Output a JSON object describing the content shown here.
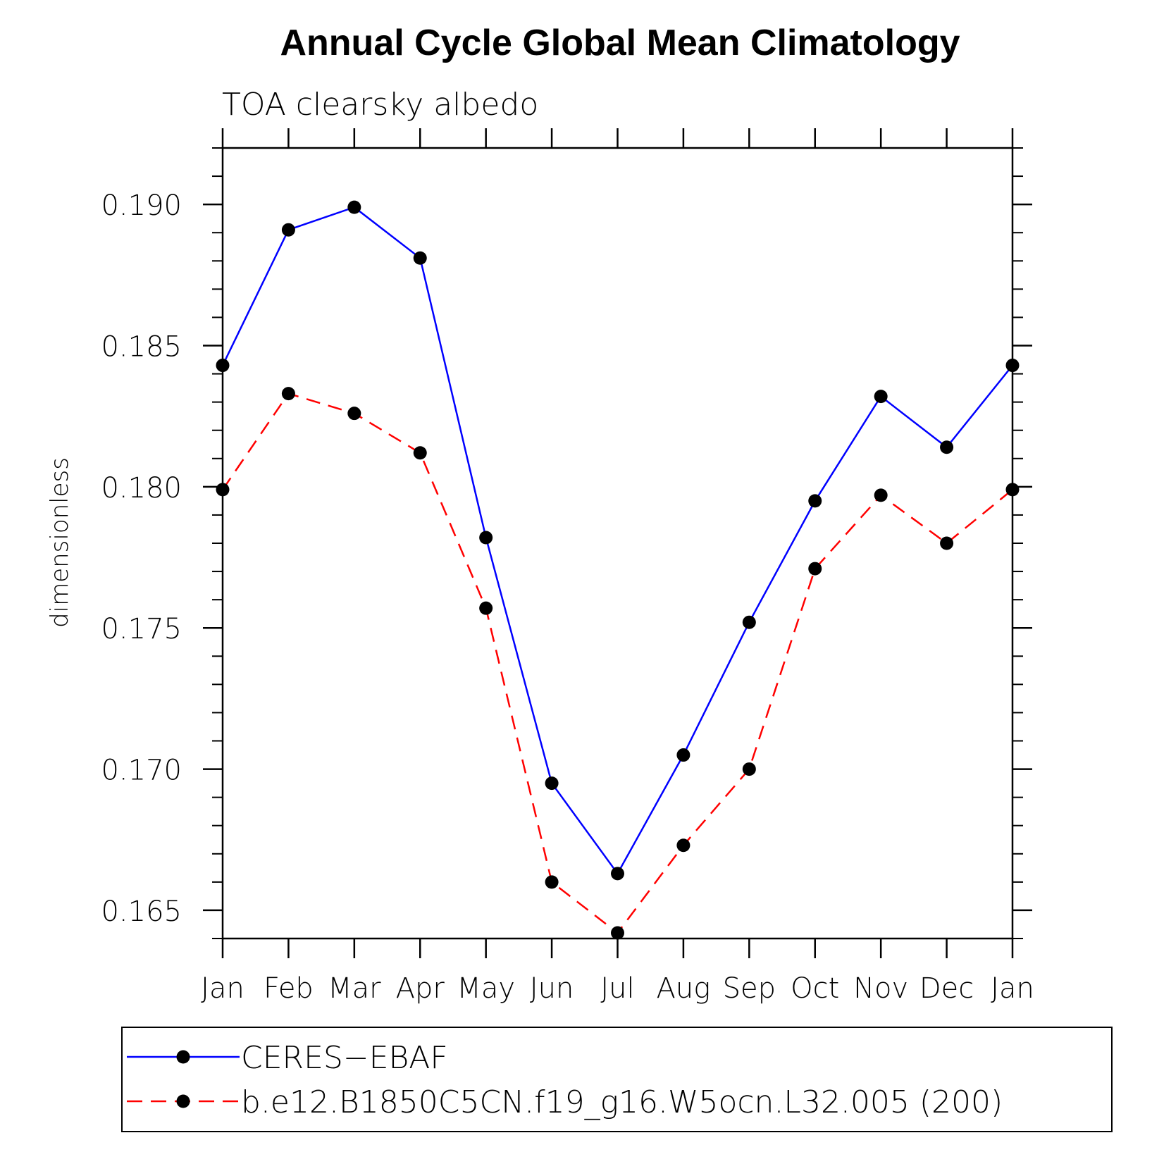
{
  "chart_data": {
    "type": "line",
    "title": "Annual Cycle Global Mean Climatology",
    "subtitle": "TOA clearsky albedo",
    "xlabel": "",
    "ylabel": "dimensionless",
    "categories": [
      "Jan",
      "Feb",
      "Mar",
      "Apr",
      "May",
      "Jun",
      "Jul",
      "Aug",
      "Sep",
      "Oct",
      "Nov",
      "Dec",
      "Jan"
    ],
    "ylim": [
      0.164,
      0.192
    ],
    "yticks": [
      "0.165",
      "0.170",
      "0.175",
      "0.180",
      "0.185",
      "0.190"
    ],
    "grid": false,
    "legend_position": "bottom",
    "series": [
      {
        "name": "CERES−EBAF",
        "color": "#0000ff",
        "line_style": "solid",
        "marker": "filled-circle",
        "values": [
          0.1843,
          0.1891,
          0.1899,
          0.1881,
          0.1782,
          0.1695,
          0.1663,
          0.1705,
          0.1752,
          0.1795,
          0.1832,
          0.1814,
          0.1843
        ]
      },
      {
        "name": "b.e12.B1850C5CN.f19_g16.W5ocn.L32.005 (200)",
        "color": "#ff0000",
        "line_style": "dashed",
        "marker": "filled-circle",
        "values": [
          0.1799,
          0.1833,
          0.1826,
          0.1812,
          0.1757,
          0.166,
          0.1642,
          0.1673,
          0.17,
          0.1771,
          0.1797,
          0.178,
          0.1799
        ]
      }
    ]
  }
}
